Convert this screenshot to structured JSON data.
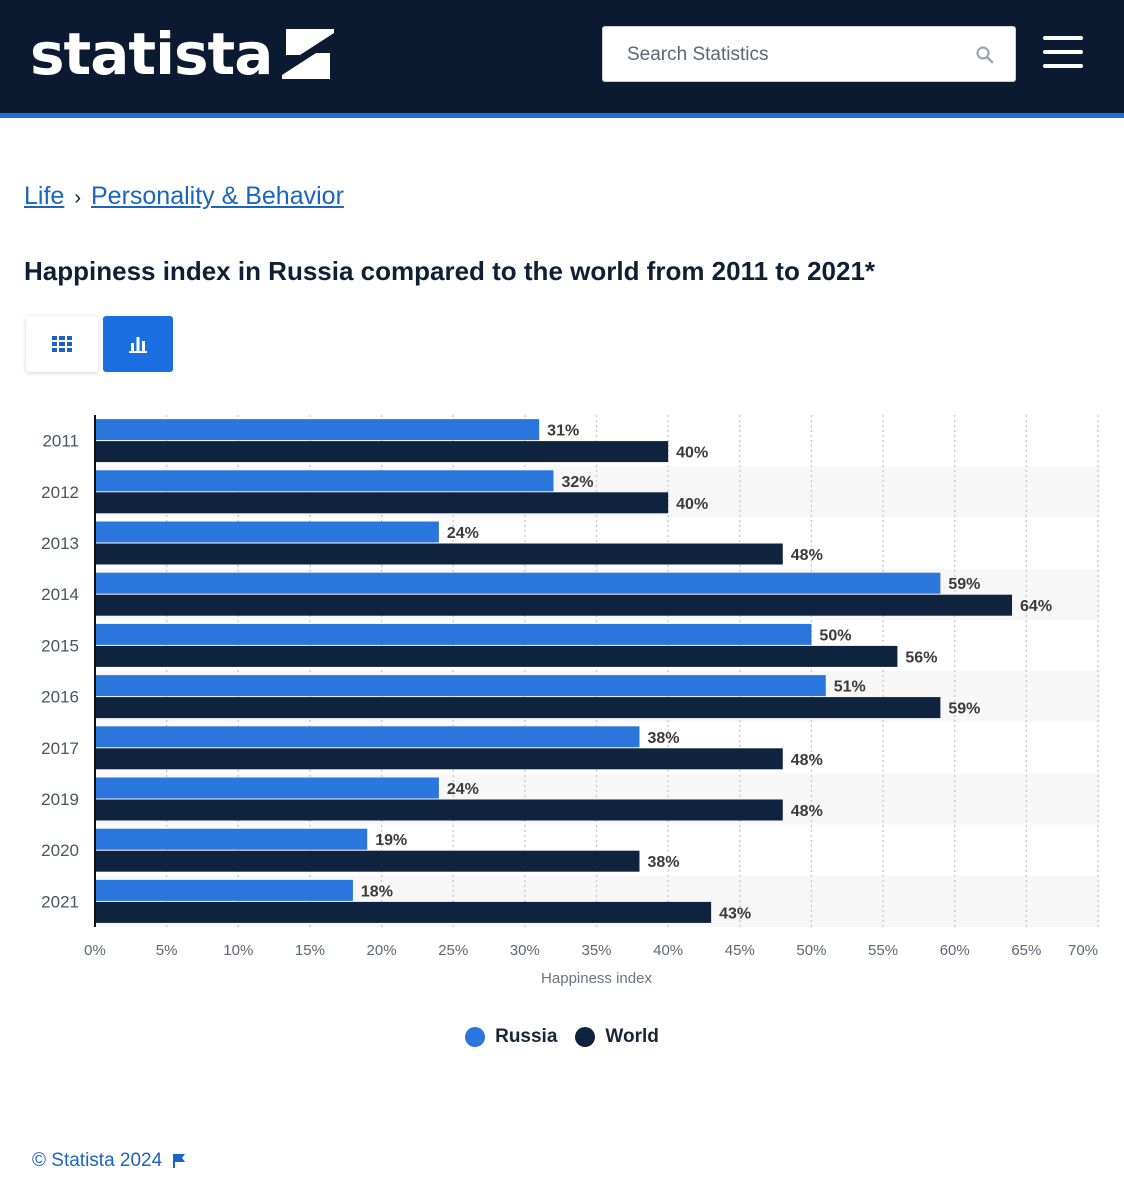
{
  "header": {
    "logo_text": "statista",
    "search_placeholder": "Search Statistics"
  },
  "breadcrumb": {
    "items": [
      "Life",
      "Personality & Behavior"
    ],
    "separator": "›"
  },
  "page_title": "Happiness index in Russia compared to the world from 2011 to 2021*",
  "colors": {
    "header_bg": "#0b1a30",
    "accent": "#1f6fd6",
    "russia": "#2a76dd",
    "world": "#0f233f"
  },
  "icons": [
    "search-icon",
    "menu-icon",
    "table-icon",
    "bar-chart-icon",
    "flag-icon"
  ],
  "chart_data": {
    "type": "bar",
    "orientation": "horizontal",
    "categories": [
      "2011",
      "2012",
      "2013",
      "2014",
      "2015",
      "2016",
      "2017",
      "2019",
      "2020",
      "2021"
    ],
    "series": [
      {
        "name": "Russia",
        "values": [
          31,
          32,
          24,
          59,
          50,
          51,
          38,
          24,
          19,
          18
        ]
      },
      {
        "name": "World",
        "values": [
          40,
          40,
          48,
          64,
          56,
          59,
          48,
          48,
          38,
          43
        ]
      }
    ],
    "value_suffix": "%",
    "xlabel": "Happiness index",
    "xlim": [
      0,
      70
    ],
    "xticks": [
      "0%",
      "5%",
      "10%",
      "15%",
      "20%",
      "25%",
      "30%",
      "35%",
      "40%",
      "45%",
      "50%",
      "55%",
      "60%",
      "65%",
      "70%"
    ],
    "grid": true,
    "legend": "bottom"
  },
  "footer": {
    "copyright": "© Statista 2024"
  }
}
